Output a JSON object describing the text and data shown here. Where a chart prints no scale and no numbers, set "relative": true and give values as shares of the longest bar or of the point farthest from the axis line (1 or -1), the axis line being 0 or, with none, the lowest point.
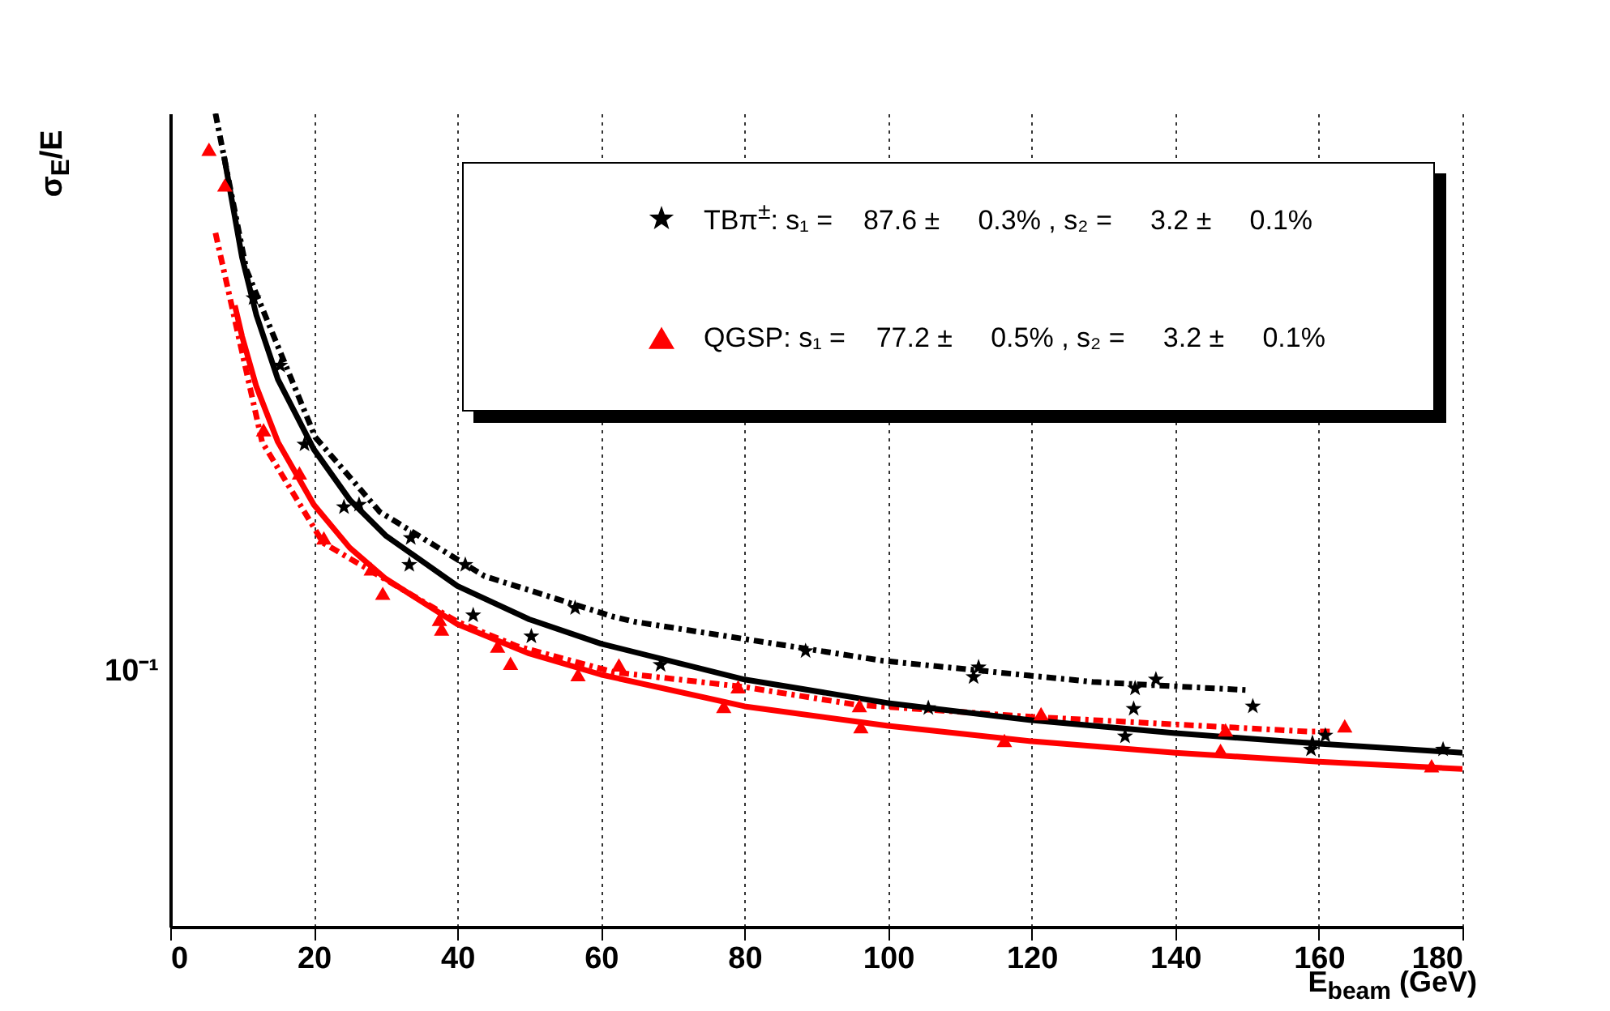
{
  "chart_data": {
    "type": "scatter",
    "xlabel": "E$_{beam}$ (GeV)",
    "ylabel": "σ$_{E}$/E",
    "relative": true,
    "grid": "x",
    "legend": "top right",
    "xlim": [
      0,
      180
    ],
    "xticks": [
      0,
      20,
      40,
      60,
      80,
      100,
      120,
      140,
      160,
      180
    ],
    "annotations": [
      "10⁻¹"
    ],
    "series": [
      {
        "type": "line",
        "color": "#000000",
        "line_style": "dashed",
        "x": [
          6.3,
          10.6,
          20.2,
          29.2,
          43.8,
          61.8,
          64.7,
          99.3,
          128.5,
          149.9
        ],
        "values": [
          1,
          0.808,
          0.602,
          0.51,
          0.431,
          0.381,
          0.375,
          0.327,
          0.301,
          0.291
        ]
      },
      {
        "type": "line",
        "color": "#ff0000",
        "line_style": "dashed",
        "x": [
          6.3,
          12.8,
          21.3,
          40,
          48.3,
          61.8,
          79.8,
          95.5,
          120.2,
          135.3,
          158.4,
          161.8
        ],
        "values": [
          0.853,
          0.596,
          0.472,
          0.375,
          0.345,
          0.313,
          0.295,
          0.273,
          0.258,
          0.251,
          0.24,
          0.24
        ]
      },
      {
        "type": "line",
        "color": "#000000",
        "line_style": "solid",
        "x": [
          7.5,
          10,
          12,
          15,
          20,
          25,
          30,
          40,
          50,
          60,
          80,
          100,
          120,
          140,
          160,
          180
        ],
        "values": [
          0.947,
          0.823,
          0.752,
          0.673,
          0.587,
          0.525,
          0.481,
          0.419,
          0.378,
          0.348,
          0.304,
          0.275,
          0.254,
          0.238,
          0.225,
          0.214
        ]
      },
      {
        "type": "line",
        "color": "#ff0000",
        "line_style": "solid",
        "x": [
          9,
          10,
          12,
          15,
          20,
          25,
          30,
          40,
          50,
          60,
          80,
          100,
          120,
          140,
          160,
          180
        ],
        "values": [
          0.764,
          0.726,
          0.664,
          0.596,
          0.519,
          0.466,
          0.428,
          0.372,
          0.336,
          0.31,
          0.271,
          0.247,
          0.228,
          0.214,
          0.203,
          0.194
        ]
      },
      {
        "type": "scatter",
        "color": "#000000",
        "marker": "star",
        "x": [
          26.3,
          33.5,
          33.3,
          41.1,
          42.2,
          50.3,
          56.4,
          68.3,
          88.5,
          111.9,
          112.6,
          134.2,
          134.4,
          137.3,
          150.8
        ],
        "values": [
          0.519,
          0.478,
          0.445,
          0.445,
          0.383,
          0.357,
          0.392,
          0.322,
          0.339,
          0.307,
          0.319,
          0.268,
          0.293,
          0.304,
          0.271
        ]
      },
      {
        "type": "scatter",
        "color": "#ff0000",
        "marker": "triangle",
        "x": [
          5.4,
          13,
          21.4,
          29.6,
          37.5,
          45.6,
          62.5,
          79.1,
          96,
          121.3,
          147,
          163.6
        ],
        "values": [
          0.956,
          0.611,
          0.478,
          0.41,
          0.378,
          0.345,
          0.322,
          0.295,
          0.272,
          0.262,
          0.242,
          0.247
        ]
      },
      {
        "name": "TBπ$^{±}$: s₁ =    87.6 ±     0.3% , s₂ =     3.2 ±     0.1%",
        "type": "scatter",
        "color": "#000000",
        "marker": "star",
        "x": [
          11.6,
          15.3,
          18.7,
          24.2,
          105.6,
          133,
          158.9,
          159.1,
          160.9,
          177.3
        ],
        "values": [
          0.773,
          0.69,
          0.593,
          0.516,
          0.269,
          0.234,
          0.218,
          0.226,
          0.235,
          0.218
        ]
      },
      {
        "name": "QGSP: s₁ =    77.2 ±     0.5% , s₂ =     3.2 ±     0.1%",
        "type": "scatter",
        "color": "#ff0000",
        "marker": "triangle",
        "x": [
          7.6,
          18,
          28,
          37.8,
          47.4,
          56.8,
          77.1,
          96.2,
          116.2,
          146.3,
          175.7
        ],
        "values": [
          0.912,
          0.558,
          0.44,
          0.366,
          0.324,
          0.31,
          0.271,
          0.246,
          0.229,
          0.217,
          0.198
        ]
      }
    ]
  }
}
